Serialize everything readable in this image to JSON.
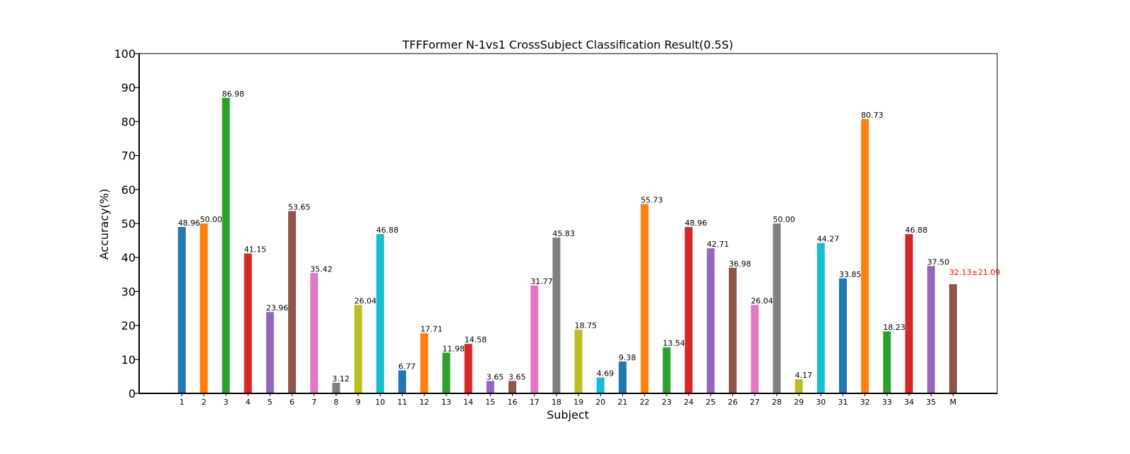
{
  "chart_data": {
    "type": "bar",
    "title": "TFFFormer N-1vs1 CrossSubject Classification Result(0.5S)",
    "xlabel": "Subject",
    "ylabel": "Accuracy(%)",
    "ylim": [
      0,
      100
    ],
    "yticks": [
      "0",
      "10",
      "20",
      "30",
      "40",
      "50",
      "60",
      "70",
      "80",
      "90",
      "100"
    ],
    "grid": false,
    "categories": [
      "1",
      "2",
      "3",
      "4",
      "5",
      "6",
      "7",
      "8",
      "9",
      "10",
      "11",
      "12",
      "13",
      "14",
      "15",
      "16",
      "17",
      "18",
      "19",
      "20",
      "21",
      "22",
      "23",
      "24",
      "25",
      "26",
      "27",
      "28",
      "29",
      "30",
      "31",
      "32",
      "33",
      "34",
      "35",
      "M"
    ],
    "values": [
      48.96,
      50.0,
      86.98,
      41.15,
      23.96,
      53.65,
      35.42,
      3.12,
      26.04,
      46.88,
      6.77,
      17.71,
      11.98,
      14.58,
      3.65,
      3.65,
      31.77,
      45.83,
      18.75,
      4.69,
      9.38,
      55.73,
      13.54,
      48.96,
      42.71,
      36.98,
      26.04,
      50.0,
      4.17,
      44.27,
      33.85,
      80.73,
      18.23,
      46.88,
      37.5,
      32.13
    ],
    "labels": [
      "48.96",
      "50.00",
      "86.98",
      "41.15",
      "23.96",
      "53.65",
      "35.42",
      "3.12",
      "26.04",
      "46.88",
      "6.77",
      "17.71",
      "11.98",
      "14.58",
      "3.65",
      "3.65",
      "31.77",
      "45.83",
      "18.75",
      "4.69",
      "9.38",
      "55.73",
      "13.54",
      "48.96",
      "42.71",
      "36.98",
      "26.04",
      "50.00",
      "4.17",
      "44.27",
      "33.85",
      "80.73",
      "18.23",
      "46.88",
      "37.50",
      "32.13±21.09"
    ],
    "colors": [
      "#1f77b4",
      "#ff7f0e",
      "#2ca02c",
      "#d62728",
      "#9467bd",
      "#8c564b",
      "#e377c2",
      "#7f7f7f",
      "#bcbd22",
      "#17becf"
    ],
    "mean_label_color": "#ff0000"
  }
}
